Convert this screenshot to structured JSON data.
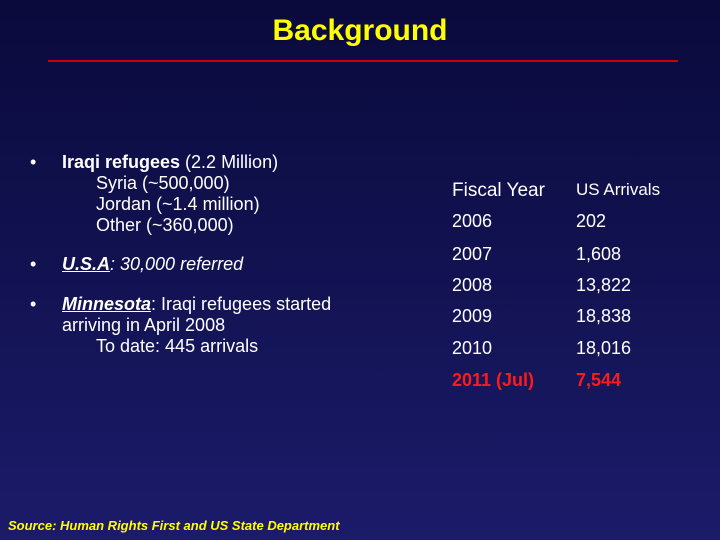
{
  "title": "Background",
  "bullets": {
    "b1": {
      "label": "Iraqi refugees",
      "rest": " (2.2 Million)",
      "sub": [
        "Syria (~500,000)",
        "Jordan (~1.4 million)",
        "Other (~360,000)"
      ]
    },
    "b2": {
      "label": "U.S.A",
      "rest": ": 30,000 referred"
    },
    "b3": {
      "label": "Minnesota",
      "rest": ": Iraqi refugees started",
      "line2": "arriving in April 2008",
      "sub": "To date: 445 arrivals"
    }
  },
  "table": {
    "headers": [
      "Fiscal Year",
      "US Arrivals"
    ],
    "rows": [
      [
        "2006",
        "202"
      ],
      [
        "2007",
        "1,608"
      ],
      [
        "2008",
        "13,822"
      ],
      [
        "2009",
        "18,838"
      ],
      [
        "2010",
        "18,016"
      ],
      [
        "2011 (Jul)",
        "7,544"
      ]
    ],
    "highlight_color": "#ff1a1a"
  },
  "source": "Source: Human Rights First and US State Department",
  "colors": {
    "title": "#ffff00",
    "rule": "#cc0000",
    "background": "#121252"
  }
}
